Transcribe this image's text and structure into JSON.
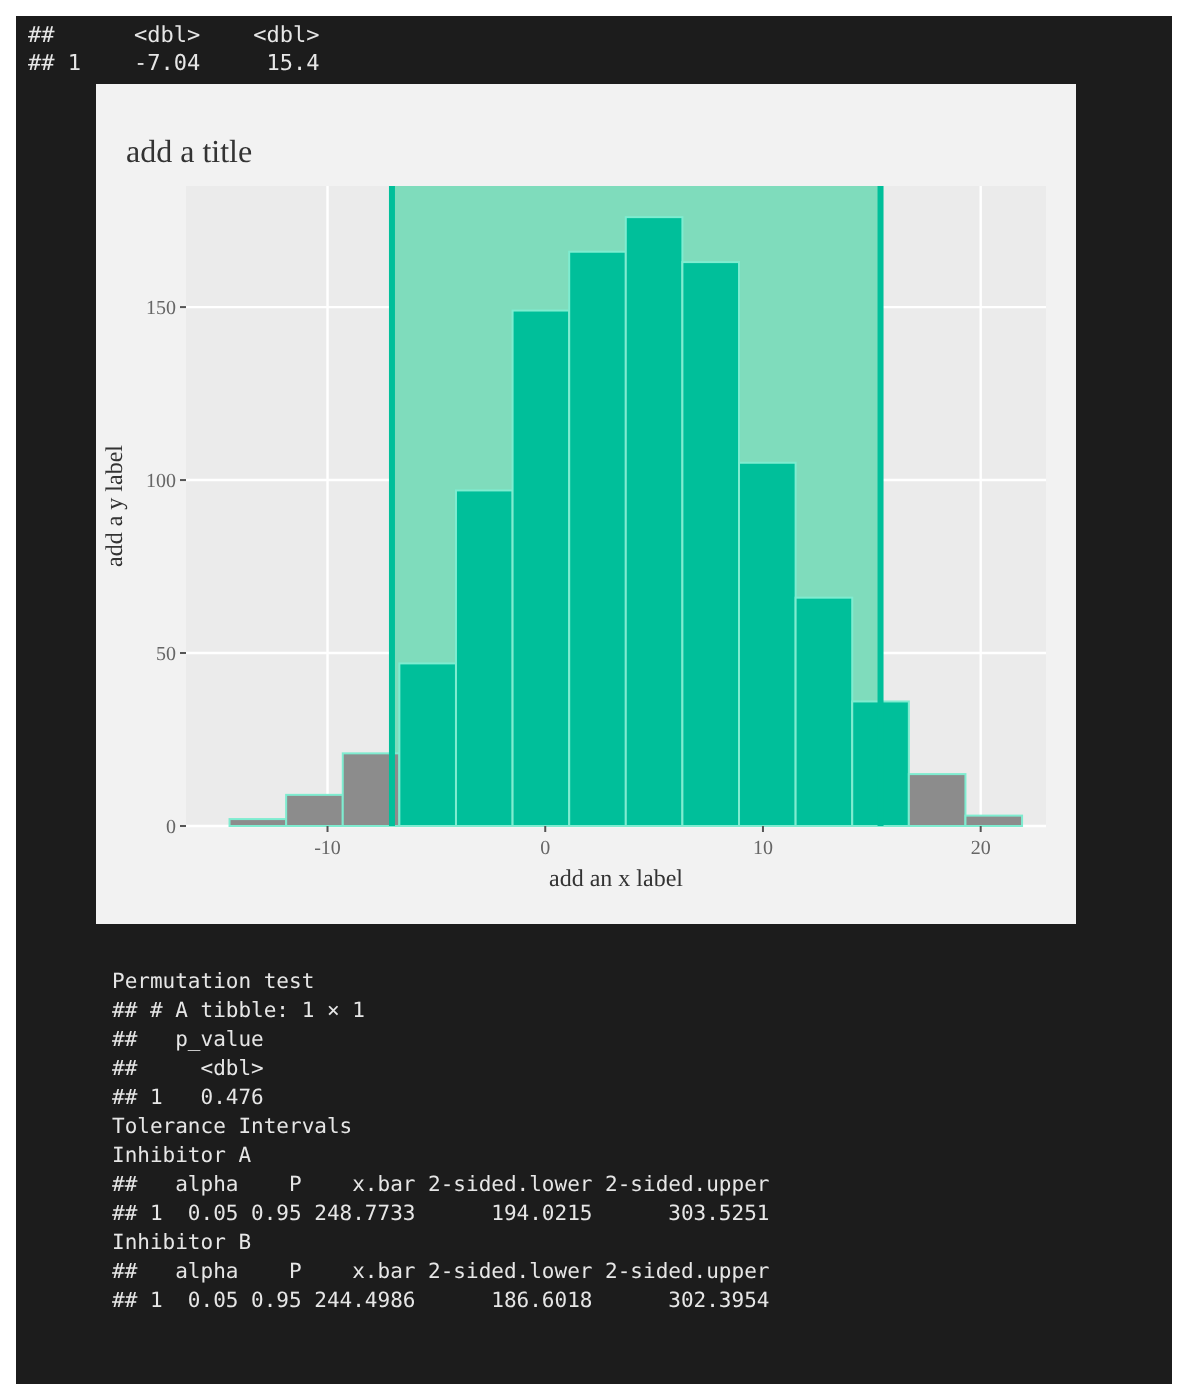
{
  "chart_data": {
    "type": "histogram",
    "title": "add a title",
    "xlabel": "add an x label",
    "ylabel": "add a y label",
    "bins": [
      -14.5,
      -11.9,
      -9.3,
      -6.7,
      -4.1,
      -1.5,
      1.1,
      3.7,
      6.3,
      8.9,
      11.5,
      14.1,
      16.7,
      19.3,
      21.9
    ],
    "values": [
      2,
      9,
      21,
      47,
      97,
      149,
      166,
      176,
      163,
      105,
      66,
      36,
      15,
      3
    ],
    "colors": [
      "#8c8c8c",
      "#8c8c8c",
      "#8c8c8c",
      "#00bf9a",
      "#00bf9a",
      "#00bf9a",
      "#00bf9a",
      "#00bf9a",
      "#00bf9a",
      "#00bf9a",
      "#00bf9a",
      "#00bf9a",
      "#8c8c8c",
      "#8c8c8c"
    ],
    "xlim": [
      -16.5,
      23
    ],
    "xticks": [
      -10,
      0,
      10,
      20
    ],
    "ylim": [
      0,
      185
    ],
    "yticks": [
      0,
      50,
      100,
      150
    ],
    "grid": true,
    "bands": [
      {
        "axis": "x",
        "from": -7.04,
        "to": 15.4,
        "color": "#7fdcbc"
      }
    ],
    "ref_lines": [
      {
        "axis": "x",
        "value": -7.04,
        "color": "#00bf9a"
      },
      {
        "axis": "x",
        "value": 15.4,
        "color": "#00bf9a"
      }
    ],
    "annotations": [
      "##      <dbl>    <dbl>",
      "## 1    -7.04     15.4",
      "Permutation test",
      "## # A tibble: 1 × 1",
      "##   p_value",
      "##     <dbl>",
      "## 1   0.476",
      "Tolerance Intervals",
      "Inhibitor A",
      "##   alpha    P    x.bar 2-sided.lower 2-sided.upper",
      "## 1  0.05 0.95 248.7733      194.0215      303.5251",
      "Inhibitor B",
      "##   alpha    P    x.bar 2-sided.lower 2-sided.upper",
      "## 1  0.05 0.95 244.4986      186.6018      302.3954"
    ]
  }
}
